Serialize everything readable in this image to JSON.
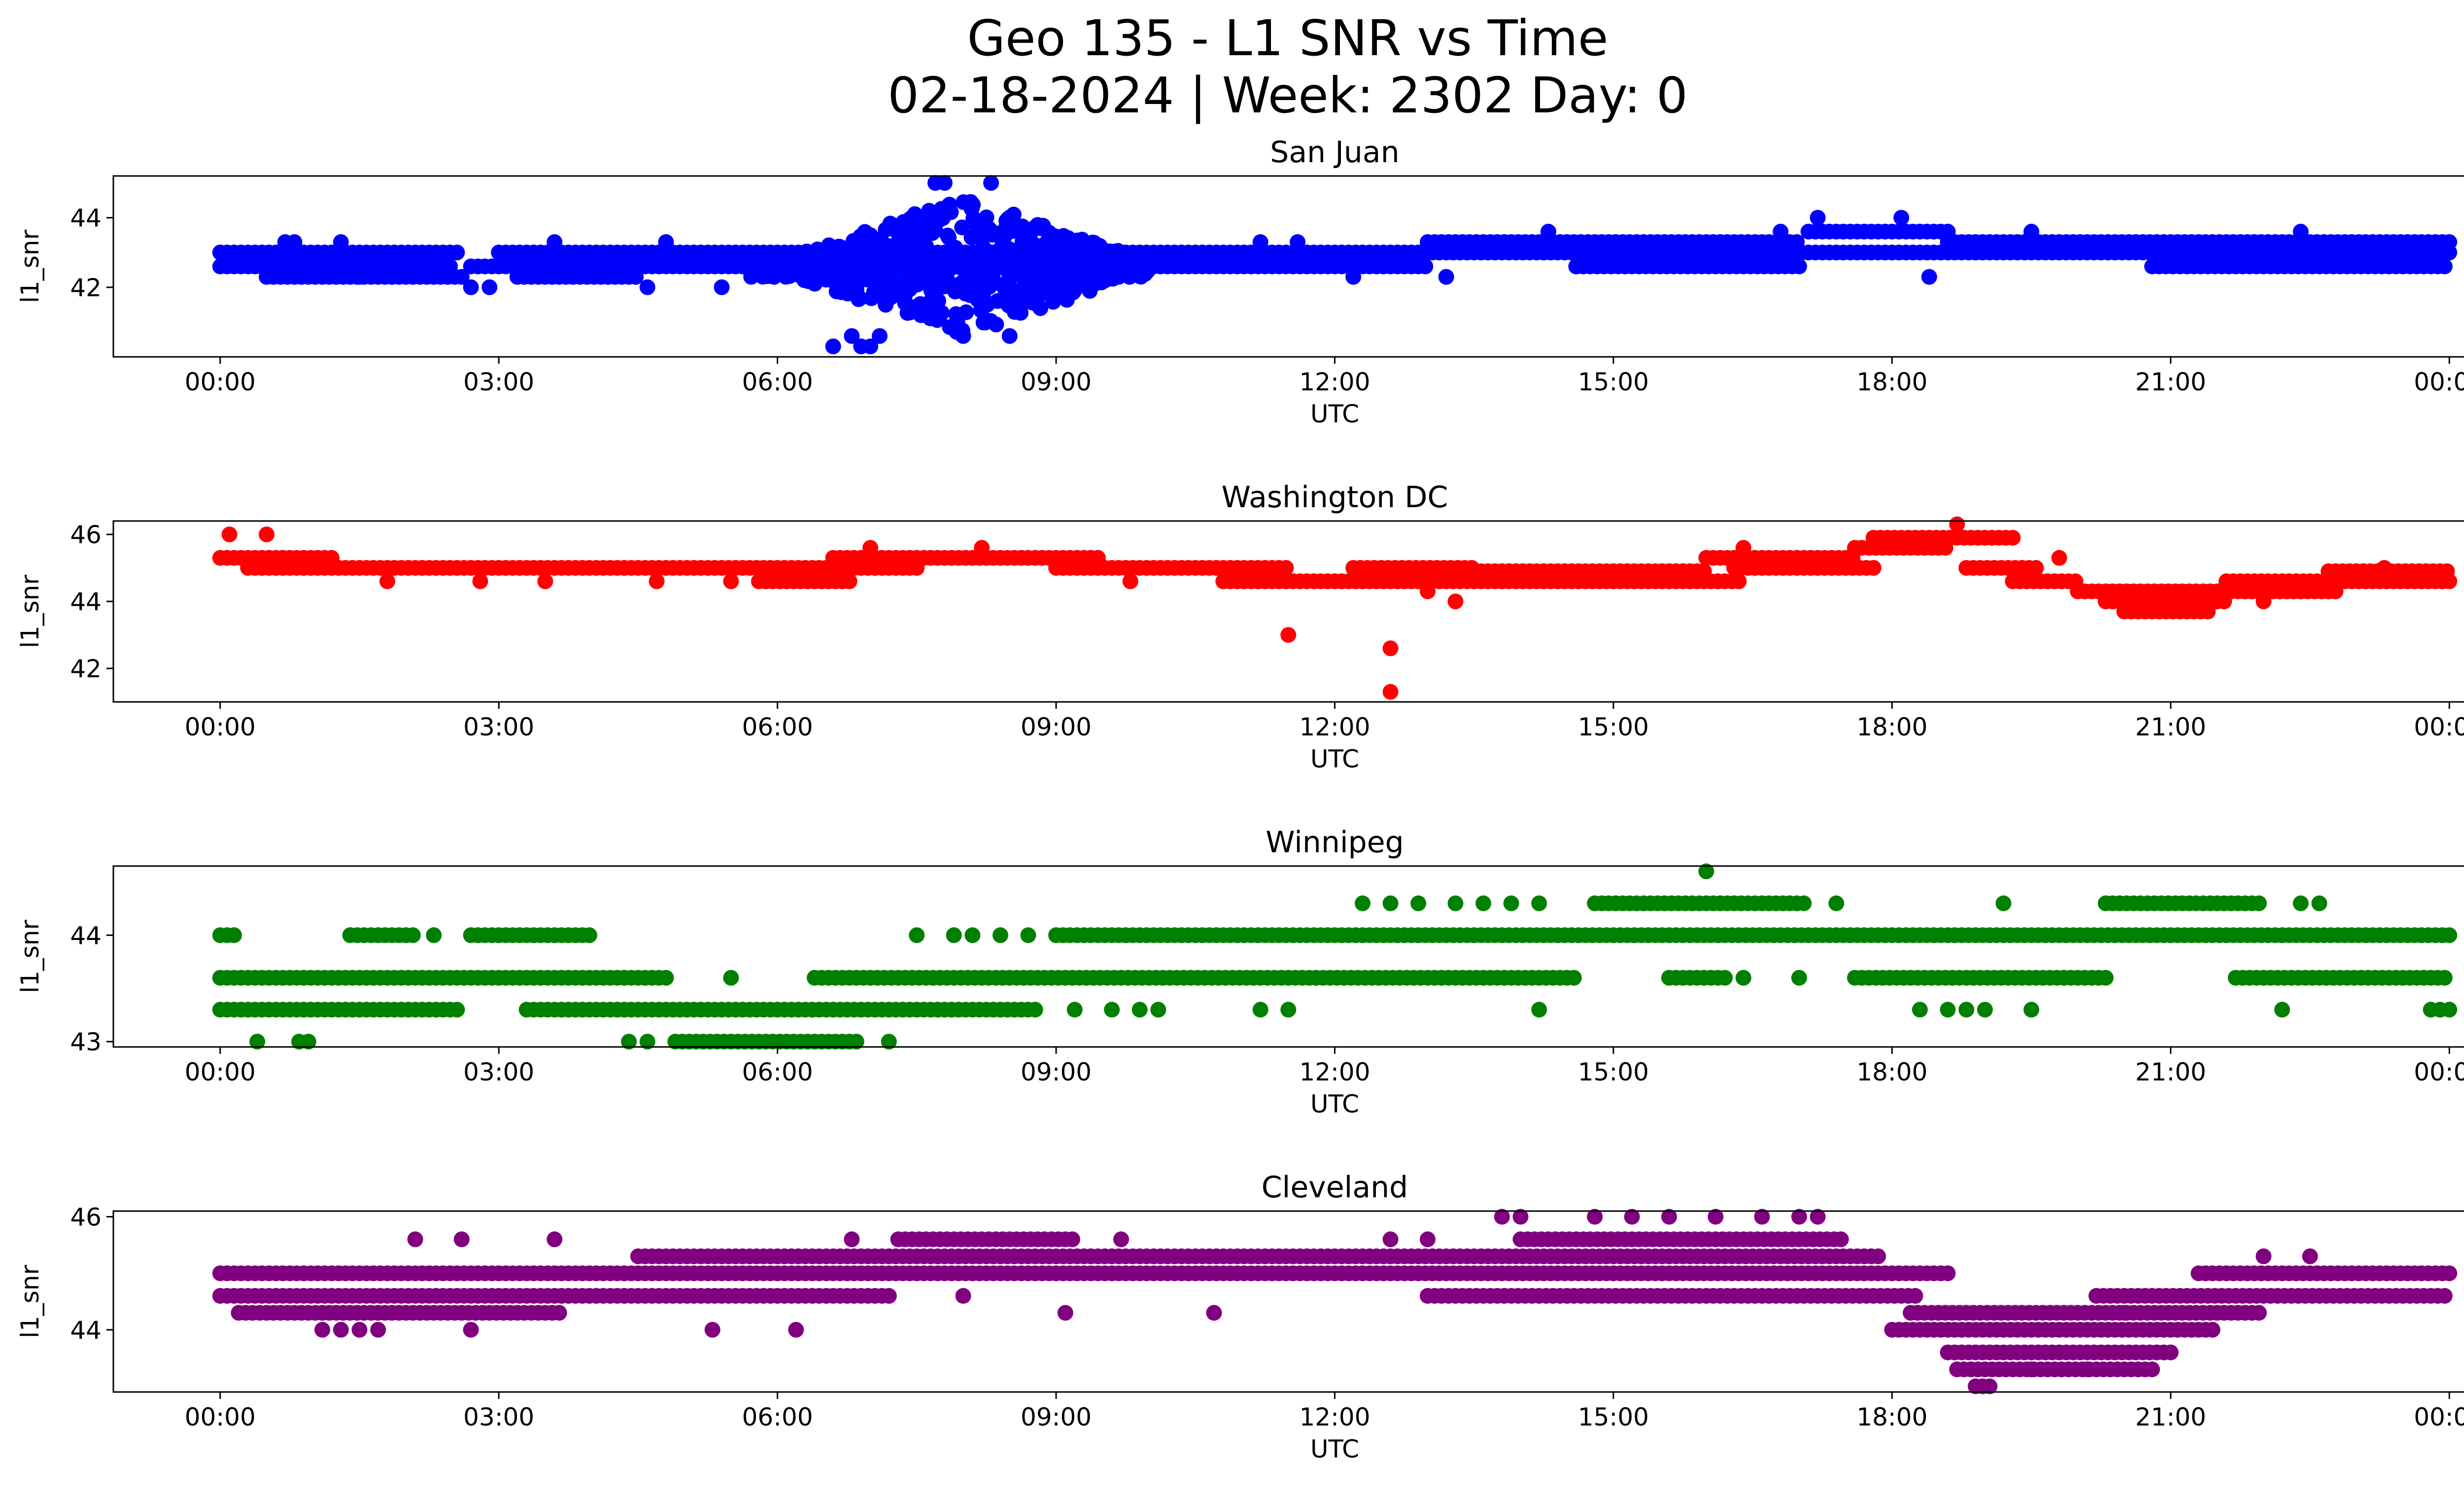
{
  "figure": {
    "title_line1": "Geo 135 - L1 SNR vs Time",
    "title_line2": "02-18-2024 | Week: 2302 Day: 0"
  },
  "chart_data": [
    {
      "type": "scatter",
      "title": "San Juan",
      "xlabel": "UTC",
      "ylabel": "l1_snr",
      "color": "#0000ff",
      "x_unit": "hours UTC",
      "x_ticks": [
        "00:00",
        "03:00",
        "06:00",
        "09:00",
        "12:00",
        "15:00",
        "18:00",
        "21:00",
        "00:00"
      ],
      "xlim_hours": [
        -1.15,
        25.15
      ],
      "ylim": [
        40.0,
        45.2
      ],
      "y_ticks": [
        42,
        44
      ],
      "bands": [
        {
          "y": 42.6,
          "ranges": [
            [
              0,
              2.5
            ],
            [
              2.7,
              13.0
            ],
            [
              14.6,
              17.0
            ],
            [
              20.8,
              24.0
            ]
          ]
        },
        {
          "y": 43.0,
          "ranges": [
            [
              0,
              2.6
            ],
            [
              3.0,
              24.0
            ]
          ]
        },
        {
          "y": 42.3,
          "ranges": [
            [
              0.5,
              2.6
            ],
            [
              3.2,
              4.5
            ]
          ]
        },
        {
          "y": 43.3,
          "ranges": [
            [
              13.0,
              17.0
            ],
            [
              18.6,
              24.0
            ]
          ]
        },
        {
          "y": 43.6,
          "ranges": [
            [
              17.1,
              18.6
            ]
          ]
        }
      ],
      "scatter_region": {
        "x": [
          5.7,
          10.0
        ],
        "y": [
          40.6,
          44.6
        ],
        "count": 650
      },
      "points": [
        [
          0.7,
          43.3
        ],
        [
          0.8,
          43.3
        ],
        [
          1.3,
          43.3
        ],
        [
          1.5,
          42.3
        ],
        [
          2.7,
          42.0
        ],
        [
          2.9,
          42.0
        ],
        [
          3.6,
          43.3
        ],
        [
          4.8,
          43.3
        ],
        [
          4.6,
          42.0
        ],
        [
          5.4,
          42.0
        ],
        [
          6.6,
          40.3
        ],
        [
          6.8,
          40.6
        ],
        [
          6.9,
          40.3
        ],
        [
          7.0,
          40.3
        ],
        [
          7.1,
          40.6
        ],
        [
          7.8,
          45.0
        ],
        [
          7.7,
          45.0
        ],
        [
          8.3,
          45.0
        ],
        [
          8.0,
          40.6
        ],
        [
          8.5,
          40.6
        ],
        [
          11.2,
          43.3
        ],
        [
          11.6,
          43.3
        ],
        [
          12.2,
          42.3
        ],
        [
          13.2,
          42.3
        ],
        [
          14.3,
          43.6
        ],
        [
          14.6,
          42.6
        ],
        [
          16.8,
          43.6
        ],
        [
          17.2,
          44.0
        ],
        [
          18.1,
          44.0
        ],
        [
          18.4,
          42.3
        ],
        [
          19.5,
          43.6
        ],
        [
          22.4,
          43.6
        ]
      ]
    },
    {
      "type": "scatter",
      "title": "Washington DC",
      "xlabel": "UTC",
      "ylabel": "l1_snr",
      "color": "#ff0000",
      "x_unit": "hours UTC",
      "x_ticks": [
        "00:00",
        "03:00",
        "06:00",
        "09:00",
        "12:00",
        "15:00",
        "18:00",
        "21:00",
        "00:00"
      ],
      "xlim_hours": [
        -1.15,
        25.15
      ],
      "ylim": [
        41.0,
        46.4
      ],
      "y_ticks": [
        42,
        44,
        46
      ],
      "bands": [
        {
          "y": 45.3,
          "ranges": [
            [
              0,
              1.2
            ],
            [
              6.6,
              9.5
            ],
            [
              16.0,
              17.6
            ]
          ]
        },
        {
          "y": 45.0,
          "ranges": [
            [
              0.3,
              7.5
            ],
            [
              9.0,
              11.5
            ],
            [
              12.2,
              13.5
            ],
            [
              16.3,
              17.8
            ],
            [
              18.8,
              19.6
            ]
          ]
        },
        {
          "y": 44.6,
          "ranges": [
            [
              5.8,
              6.8
            ],
            [
              10.8,
              16.4
            ],
            [
              19.3,
              20.0
            ]
          ]
        },
        {
          "y": 44.9,
          "ranges": [
            [
              13.5,
              16.0
            ],
            [
              22.7,
              24.0
            ]
          ]
        },
        {
          "y": 45.6,
          "ranges": [
            [
              17.6,
              18.6
            ]
          ]
        },
        {
          "y": 45.9,
          "ranges": [
            [
              17.8,
              19.3
            ]
          ]
        },
        {
          "y": 44.3,
          "ranges": [
            [
              20.0,
              21.8
            ]
          ]
        },
        {
          "y": 44.0,
          "ranges": [
            [
              20.3,
              21.6
            ]
          ]
        },
        {
          "y": 43.7,
          "ranges": [
            [
              20.5,
              21.4
            ]
          ]
        },
        {
          "y": 44.6,
          "ranges": [
            [
              21.6,
              24.0
            ]
          ]
        },
        {
          "y": 44.3,
          "ranges": [
            [
              21.8,
              22.8
            ]
          ]
        }
      ],
      "points": [
        [
          0.1,
          46.0
        ],
        [
          0.5,
          46.0
        ],
        [
          0.3,
          45.0
        ],
        [
          1.8,
          44.6
        ],
        [
          2.8,
          44.6
        ],
        [
          3.5,
          44.6
        ],
        [
          4.7,
          44.6
        ],
        [
          5.5,
          44.6
        ],
        [
          7.0,
          45.6
        ],
        [
          8.2,
          45.6
        ],
        [
          9.8,
          44.6
        ],
        [
          11.5,
          43.0
        ],
        [
          12.6,
          42.6
        ],
        [
          12.6,
          41.3
        ],
        [
          13.3,
          44.0
        ],
        [
          13.0,
          44.3
        ],
        [
          16.4,
          45.6
        ],
        [
          18.7,
          46.3
        ],
        [
          19.8,
          45.3
        ],
        [
          22.0,
          44.0
        ],
        [
          23.3,
          45.0
        ]
      ]
    },
    {
      "type": "scatter",
      "title": "Winnipeg",
      "xlabel": "UTC",
      "ylabel": "l1_snr",
      "color": "#008000",
      "x_unit": "hours UTC",
      "x_ticks": [
        "00:00",
        "03:00",
        "06:00",
        "09:00",
        "12:00",
        "15:00",
        "18:00",
        "21:00",
        "00:00"
      ],
      "xlim_hours": [
        -1.15,
        25.15
      ],
      "ylim": [
        42.95,
        44.65
      ],
      "y_ticks": [
        43,
        44
      ],
      "bands": [
        {
          "y": 44.0,
          "ranges": [
            [
              0,
              0.2
            ],
            [
              1.4,
              2.1
            ],
            [
              2.7,
              4.0
            ],
            [
              9.0,
              24.0
            ]
          ]
        },
        {
          "y": 43.6,
          "ranges": [
            [
              0,
              4.8
            ],
            [
              6.4,
              14.6
            ],
            [
              15.6,
              16.2
            ],
            [
              17.6,
              20.3
            ],
            [
              21.7,
              24.0
            ]
          ]
        },
        {
          "y": 43.3,
          "ranges": [
            [
              0,
              2.6
            ],
            [
              3.3,
              8.8
            ]
          ]
        },
        {
          "y": 43.0,
          "ranges": [
            [
              4.9,
              6.9
            ]
          ]
        },
        {
          "y": 44.3,
          "ranges": [
            [
              14.8,
              17.1
            ],
            [
              20.3,
              22.0
            ]
          ]
        }
      ],
      "points": [
        [
          0.4,
          43.0
        ],
        [
          0.85,
          43.0
        ],
        [
          0.95,
          43.0
        ],
        [
          1.7,
          44.0
        ],
        [
          2.3,
          44.0
        ],
        [
          4.4,
          43.0
        ],
        [
          4.6,
          43.0
        ],
        [
          5.5,
          43.6
        ],
        [
          7.2,
          43.0
        ],
        [
          7.5,
          44.0
        ],
        [
          7.9,
          44.0
        ],
        [
          8.1,
          44.0
        ],
        [
          8.4,
          44.0
        ],
        [
          8.7,
          44.0
        ],
        [
          9.2,
          43.3
        ],
        [
          9.6,
          43.3
        ],
        [
          9.9,
          43.3
        ],
        [
          10.1,
          43.3
        ],
        [
          11.2,
          43.3
        ],
        [
          11.5,
          43.3
        ],
        [
          12.3,
          44.3
        ],
        [
          12.6,
          44.3
        ],
        [
          12.9,
          44.3
        ],
        [
          13.3,
          44.3
        ],
        [
          13.6,
          44.3
        ],
        [
          13.9,
          44.3
        ],
        [
          14.2,
          44.3
        ],
        [
          14.2,
          43.3
        ],
        [
          15.6,
          43.6
        ],
        [
          16.0,
          44.6
        ],
        [
          16.4,
          43.6
        ],
        [
          17.0,
          43.6
        ],
        [
          17.4,
          44.3
        ],
        [
          18.3,
          43.3
        ],
        [
          18.6,
          43.3
        ],
        [
          18.8,
          43.3
        ],
        [
          19.0,
          43.3
        ],
        [
          19.2,
          44.3
        ],
        [
          19.5,
          43.3
        ],
        [
          22.2,
          43.3
        ],
        [
          22.4,
          44.3
        ],
        [
          22.6,
          44.3
        ],
        [
          23.8,
          43.3
        ],
        [
          23.9,
          43.3
        ],
        [
          24.0,
          43.3
        ]
      ]
    },
    {
      "type": "scatter",
      "title": "Cleveland",
      "xlabel": "UTC",
      "ylabel": "l1_snr",
      "color": "#800080",
      "x_unit": "hours UTC",
      "x_ticks": [
        "00:00",
        "03:00",
        "06:00",
        "09:00",
        "12:00",
        "15:00",
        "18:00",
        "21:00",
        "00:00"
      ],
      "xlim_hours": [
        -1.15,
        25.15
      ],
      "ylim": [
        42.9,
        46.1
      ],
      "y_ticks": [
        44,
        46
      ],
      "bands": [
        {
          "y": 45.0,
          "ranges": [
            [
              0,
              18.6
            ],
            [
              21.3,
              24.0
            ]
          ]
        },
        {
          "y": 44.6,
          "ranges": [
            [
              0,
              7.2
            ],
            [
              13.0,
              18.3
            ],
            [
              20.2,
              24.0
            ]
          ]
        },
        {
          "y": 45.3,
          "ranges": [
            [
              4.5,
              17.9
            ]
          ]
        },
        {
          "y": 44.3,
          "ranges": [
            [
              0.2,
              3.7
            ],
            [
              18.2,
              22.0
            ]
          ]
        },
        {
          "y": 45.6,
          "ranges": [
            [
              7.3,
              9.2
            ],
            [
              14.0,
              17.5
            ]
          ]
        },
        {
          "y": 44.0,
          "ranges": [
            [
              18.0,
              21.5
            ]
          ]
        },
        {
          "y": 43.6,
          "ranges": [
            [
              18.6,
              21.0
            ]
          ]
        },
        {
          "y": 43.3,
          "ranges": [
            [
              18.7,
              20.8
            ]
          ]
        },
        {
          "y": 43.0,
          "ranges": [
            [
              18.9,
              19.1
            ]
          ]
        }
      ],
      "points": [
        [
          1.1,
          44.0
        ],
        [
          1.3,
          44.0
        ],
        [
          1.5,
          44.0
        ],
        [
          1.7,
          44.0
        ],
        [
          2.1,
          45.6
        ],
        [
          2.6,
          45.6
        ],
        [
          2.7,
          44.0
        ],
        [
          3.6,
          45.6
        ],
        [
          5.3,
          44.0
        ],
        [
          6.2,
          44.0
        ],
        [
          6.8,
          45.6
        ],
        [
          8.0,
          44.6
        ],
        [
          9.1,
          44.3
        ],
        [
          9.7,
          45.6
        ],
        [
          10.7,
          44.3
        ],
        [
          12.6,
          45.6
        ],
        [
          13.0,
          45.6
        ],
        [
          13.8,
          46.0
        ],
        [
          14.0,
          46.0
        ],
        [
          14.8,
          46.0
        ],
        [
          15.2,
          46.0
        ],
        [
          15.6,
          46.0
        ],
        [
          16.1,
          46.0
        ],
        [
          16.6,
          46.0
        ],
        [
          17.0,
          46.0
        ],
        [
          17.2,
          46.0
        ],
        [
          19.5,
          43.3
        ],
        [
          20.1,
          43.3
        ],
        [
          20.5,
          44.3
        ],
        [
          22.0,
          45.3
        ],
        [
          22.5,
          45.3
        ]
      ]
    }
  ]
}
